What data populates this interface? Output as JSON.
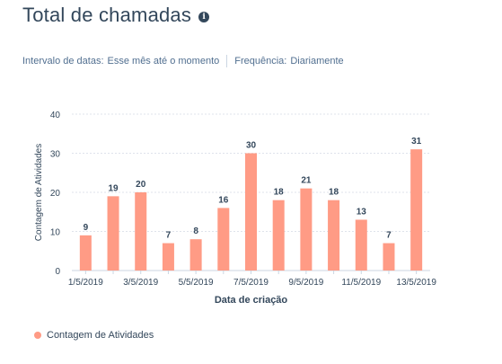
{
  "report": {
    "title": "Total de chamadas",
    "filters": {
      "date_range_label": "Intervalo de datas:",
      "date_range_value": "Esse mês até o momento",
      "frequency_label": "Frequência:",
      "frequency_value": "Diariamente"
    }
  },
  "colors": {
    "bar": "#ff9b85",
    "grid": "#dfe3eb",
    "axis": "#33475b"
  },
  "chart_data": {
    "type": "bar",
    "xlabel": "Data de criação",
    "ylabel": "Contagem de Atividades",
    "ylim": [
      0,
      40
    ],
    "yticks": [
      0,
      10,
      20,
      30,
      40
    ],
    "grid": true,
    "legend_position": "bottom-left",
    "categories": [
      "1/5/2019",
      "2/5/2019",
      "3/5/2019",
      "4/5/2019",
      "5/5/2019",
      "6/5/2019",
      "7/5/2019",
      "8/5/2019",
      "9/5/2019",
      "10/5/2019",
      "11/5/2019",
      "12/5/2019",
      "13/5/2019"
    ],
    "x_tick_labels": [
      "1/5/2019",
      "",
      "3/5/2019",
      "",
      "5/5/2019",
      "",
      "7/5/2019",
      "",
      "9/5/2019",
      "",
      "11/5/2019",
      "",
      "13/5/2019"
    ],
    "series": [
      {
        "name": "Contagem de Atividades",
        "values": [
          9,
          19,
          20,
          7,
          8,
          16,
          30,
          18,
          21,
          18,
          13,
          7,
          31
        ]
      }
    ]
  }
}
